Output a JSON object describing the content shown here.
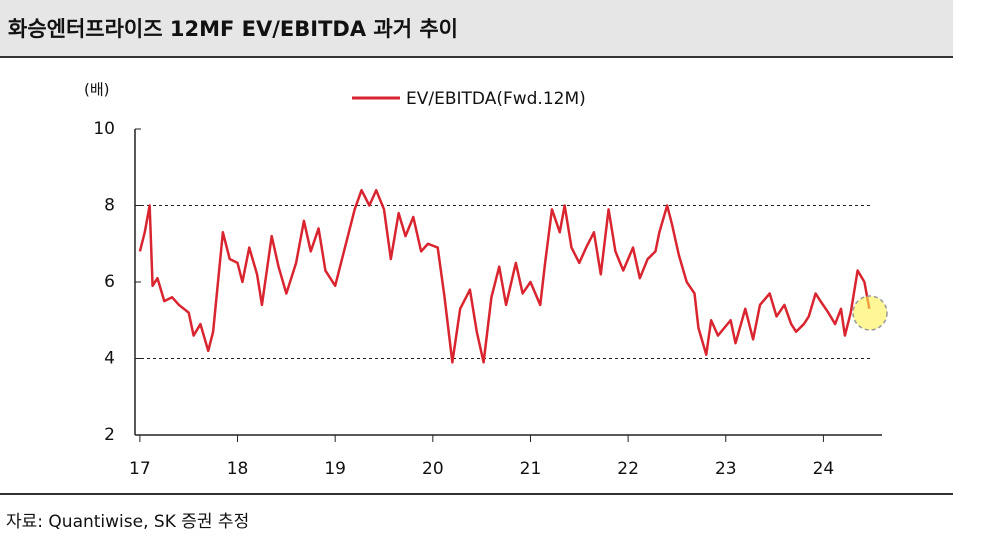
{
  "chart_data": {
    "type": "line",
    "title": "화승엔터프라이즈 12MF EV/EBITDA 과거 추이",
    "y_unit": "(배)",
    "source": "자료: Quantiwise, SK 증권 추정",
    "x": [
      17.0,
      17.05,
      17.1,
      17.13,
      17.18,
      17.25,
      17.33,
      17.4,
      17.5,
      17.55,
      17.62,
      17.7,
      17.75,
      17.85,
      17.92,
      18.0,
      18.05,
      18.12,
      18.2,
      18.25,
      18.35,
      18.42,
      18.5,
      18.6,
      18.68,
      18.75,
      18.83,
      18.9,
      19.0,
      19.1,
      19.2,
      19.27,
      19.35,
      19.42,
      19.5,
      19.57,
      19.65,
      19.72,
      19.8,
      19.88,
      19.95,
      20.05,
      20.12,
      20.2,
      20.28,
      20.38,
      20.45,
      20.52,
      20.6,
      20.68,
      20.75,
      20.85,
      20.92,
      21.0,
      21.1,
      21.15,
      21.22,
      21.3,
      21.35,
      21.42,
      21.5,
      21.57,
      21.65,
      21.72,
      21.8,
      21.87,
      21.95,
      22.05,
      22.12,
      22.2,
      22.28,
      22.32,
      22.4,
      22.45,
      22.52,
      22.6,
      22.68,
      22.72,
      22.8,
      22.85,
      22.92,
      23.05,
      23.1,
      23.2,
      23.28,
      23.35,
      23.45,
      23.52,
      23.6,
      23.67,
      23.72,
      23.8,
      23.85,
      23.92,
      23.97,
      24.05,
      24.12,
      24.18,
      24.22,
      24.28,
      24.35,
      24.42,
      24.47
    ],
    "series": [
      {
        "name": "EV/EBITDA(Fwd.12M)",
        "color": "#d9252f",
        "values": [
          6.8,
          7.3,
          8.0,
          5.9,
          6.1,
          5.5,
          5.6,
          5.4,
          5.2,
          4.6,
          4.9,
          4.2,
          4.7,
          7.3,
          6.6,
          6.5,
          6.0,
          6.9,
          6.2,
          5.4,
          7.2,
          6.4,
          5.7,
          6.5,
          7.6,
          6.8,
          7.4,
          6.3,
          5.9,
          6.9,
          7.9,
          8.4,
          8.0,
          8.4,
          7.9,
          6.6,
          7.8,
          7.2,
          7.7,
          6.8,
          7.0,
          6.9,
          5.6,
          3.9,
          5.3,
          5.8,
          4.7,
          3.9,
          5.6,
          6.4,
          5.4,
          6.5,
          5.7,
          6.0,
          5.4,
          6.5,
          7.9,
          7.3,
          8.0,
          6.9,
          6.5,
          6.9,
          7.3,
          6.2,
          7.9,
          6.8,
          6.3,
          6.9,
          6.1,
          6.6,
          6.8,
          7.3,
          8.0,
          7.5,
          6.7,
          6.0,
          5.7,
          4.8,
          4.1,
          5.0,
          4.6,
          5.0,
          4.4,
          5.3,
          4.5,
          5.4,
          5.7,
          5.1,
          5.4,
          4.9,
          4.7,
          4.9,
          5.1,
          5.7,
          5.5,
          5.2,
          4.9,
          5.3,
          4.6,
          5.2,
          6.3,
          6.0,
          5.3
        ]
      }
    ],
    "xlim": [
      16.95,
      24.6
    ],
    "xticks": [
      {
        "value": 17,
        "label": "17"
      },
      {
        "value": 18,
        "label": "18"
      },
      {
        "value": 19,
        "label": "19"
      },
      {
        "value": 20,
        "label": "20"
      },
      {
        "value": 21,
        "label": "21"
      },
      {
        "value": 22,
        "label": "22"
      },
      {
        "value": 23,
        "label": "23"
      },
      {
        "value": 24,
        "label": "24"
      }
    ],
    "ylim": [
      2,
      10
    ],
    "yticks": [
      2,
      4,
      6,
      8,
      10
    ],
    "gridlines": [
      4,
      8
    ],
    "legend": "top"
  }
}
